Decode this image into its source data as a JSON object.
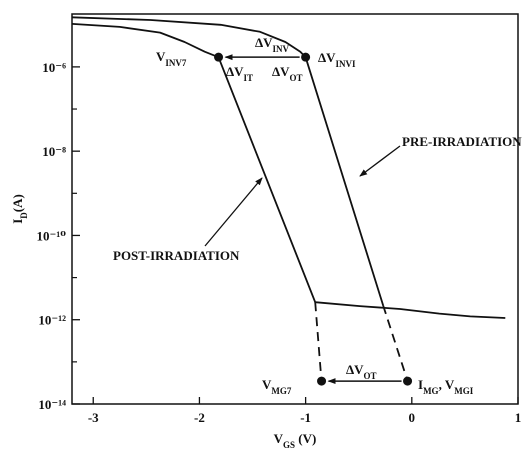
{
  "chart_data": {
    "type": "line",
    "y_log": true,
    "x_label": {
      "parts": [
        {
          "text": "V"
        },
        {
          "sub": "GS"
        },
        {
          "text": " (V)"
        }
      ]
    },
    "y_label": {
      "parts": [
        {
          "text": "I"
        },
        {
          "sub": "D"
        },
        {
          "text": "(A)"
        }
      ]
    },
    "xlim": [
      -3.2,
      1
    ],
    "xticks": [
      -3,
      -2,
      -1,
      0,
      1
    ],
    "ylim": [
      1e-14,
      1.8e-05
    ],
    "yticks": [
      {
        "value": 1e-06,
        "label": "10⁻⁶"
      },
      {
        "value": 1e-08,
        "label": "10⁻⁸"
      },
      {
        "value": 1e-10,
        "label": "10⁻¹⁰"
      },
      {
        "value": 1e-12,
        "label": "10⁻¹²"
      },
      {
        "value": 1e-14,
        "label": "10⁻¹⁴"
      }
    ],
    "minor_yticks": [
      1e-07,
      1e-09,
      1e-11,
      1e-13
    ],
    "color": "#111111",
    "series": [
      {
        "style": "solid",
        "x": [
          -3.2,
          -2.46,
          -1.8,
          -1.43,
          -1.19,
          -1.05,
          -1.0,
          -0.27
        ],
        "values": [
          1.5e-05,
          1.3e-05,
          1e-05,
          6.8e-06,
          3.9e-06,
          2.3e-06,
          1.7e-06,
          2.2e-12
        ]
      },
      {
        "style": "solid",
        "x": [
          -3.2,
          -2.75,
          -2.37,
          -2.14,
          -1.95,
          -1.82,
          -0.91,
          -0.49,
          -0.11,
          0.26,
          0.55,
          0.88
        ],
        "values": [
          1.05e-05,
          8.9e-06,
          6.5e-06,
          3.9e-06,
          2.3e-06,
          1.7e-06,
          2.6e-12,
          2.1e-12,
          1.8e-12,
          1.4e-12,
          1.2e-12,
          1.1e-12
        ]
      },
      {
        "style": "dashed",
        "x": [
          -0.27,
          -0.04
        ],
        "values": [
          2.2e-12,
          3.5e-14
        ]
      },
      {
        "style": "dashed",
        "x": [
          -0.91,
          -0.85
        ],
        "values": [
          2.6e-12,
          3.5e-14
        ]
      }
    ],
    "points": {
      "x": [
        -1.82,
        -1.0,
        -0.85,
        -0.04
      ],
      "values": [
        1.7e-06,
        1.7e-06,
        3.5e-14,
        3.5e-14
      ]
    },
    "annotations": [
      {
        "parts": [
          {
            "text": "V"
          },
          {
            "sub": "INV7"
          }
        ]
      },
      {
        "parts": [
          {
            "text": "ΔV"
          },
          {
            "sub": "INV"
          }
        ]
      },
      {
        "parts": [
          {
            "text": "ΔV"
          },
          {
            "sub": "INVI"
          }
        ]
      },
      {
        "parts": [
          {
            "text": "ΔV"
          },
          {
            "sub": "IT"
          }
        ]
      },
      {
        "parts": [
          {
            "text": "ΔV"
          },
          {
            "sub": "OT"
          }
        ]
      },
      {
        "parts": [
          {
            "text": "PRE-IRRADIATION"
          }
        ]
      },
      {
        "parts": [
          {
            "text": "POST-IRRADIATION"
          }
        ]
      },
      {
        "parts": [
          {
            "text": "ΔV"
          },
          {
            "sub": "OT"
          }
        ]
      },
      {
        "parts": [
          {
            "text": "V"
          },
          {
            "sub": "MG7"
          }
        ]
      },
      {
        "parts": [
          {
            "text": "I"
          },
          {
            "sub": "MG"
          },
          {
            "text": ", V"
          },
          {
            "sub": "MGI"
          }
        ]
      }
    ]
  }
}
